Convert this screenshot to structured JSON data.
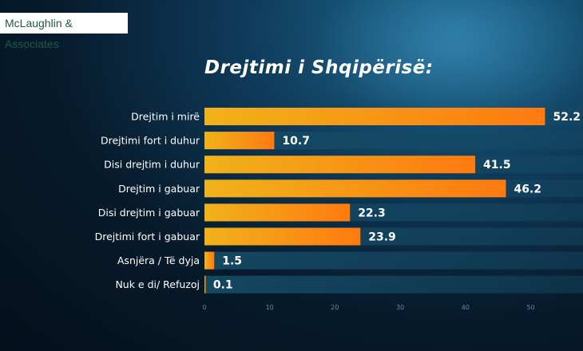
{
  "header": {
    "brand": "McLaughlin & Associates"
  },
  "colors": {
    "bar_start": "#f0b21a",
    "bar_end": "#ff7a10",
    "track": "#154a64",
    "label": "#ffffff"
  },
  "chart_data": {
    "type": "bar",
    "orientation": "horizontal",
    "title": "Drejtimi i Shqipërisë:",
    "categories": [
      "Drejtim i mirë",
      "Drejtimi fort i duhur",
      "Disi drejtim i duhur",
      "Drejtim i gabuar",
      "Disi drejtim i gabuar",
      "Drejtimi fort i gabuar",
      "Asnjëra / Të dyja",
      "Nuk e di/ Refuzoj"
    ],
    "values": [
      52.2,
      10.7,
      41.5,
      46.2,
      22.3,
      23.9,
      1.5,
      0.1
    ],
    "xticks": [
      0,
      10,
      20,
      30,
      40,
      50
    ],
    "xlim": [
      0,
      57.5
    ],
    "grid": false,
    "legend": "none"
  }
}
